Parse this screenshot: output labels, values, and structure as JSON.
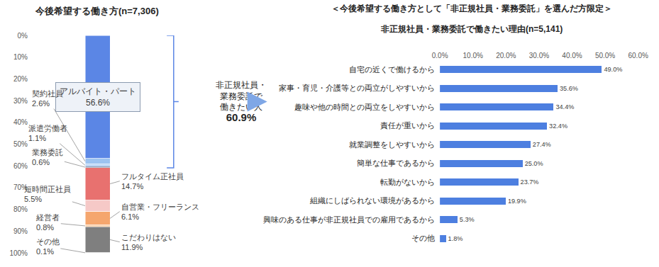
{
  "chart_data": [
    {
      "type": "bar",
      "stacked": true,
      "title": "今後希望する働き方(n=7,306)",
      "categories": [
        null
      ],
      "series": [
        {
          "name": "アルバイト・パート",
          "color": "#5B86E5",
          "values": [
            56.6
          ],
          "value_labels": [
            "56.6%"
          ]
        },
        {
          "name": "契約社員",
          "color": "#9DC3F0",
          "values": [
            2.6
          ],
          "value_labels": [
            "2.6%"
          ]
        },
        {
          "name": "派遣労働者",
          "color": "#BDD7F5",
          "values": [
            1.1
          ],
          "value_labels": [
            "1.1%"
          ]
        },
        {
          "name": "業務委託",
          "color": "#1F3864",
          "values": [
            0.6
          ],
          "value_labels": [
            "0.6%"
          ]
        },
        {
          "name": "フルタイム正社員",
          "color": "#E8716F",
          "values": [
            14.7
          ],
          "value_labels": [
            "14.7%"
          ]
        },
        {
          "name": "短時間正社員",
          "color": "#F6C9C7",
          "values": [
            5.5
          ],
          "value_labels": [
            "5.5%"
          ]
        },
        {
          "name": "自営業・フリーランス",
          "color": "#F5A66E",
          "values": [
            6.1
          ],
          "value_labels": [
            "6.1%"
          ]
        },
        {
          "name": "経営者",
          "color": "#FAD3AE",
          "values": [
            0.8
          ],
          "value_labels": [
            "0.8%"
          ]
        },
        {
          "name": "こだわりはない",
          "color": "#7F7F7F",
          "values": [
            11.9
          ],
          "value_labels": [
            "11.9%"
          ]
        },
        {
          "name": "その他",
          "color": "#C9C9C9",
          "values": [
            0.1
          ],
          "value_labels": [
            "0.1%"
          ]
        }
      ],
      "ylim": [
        0,
        100
      ],
      "yticks": [
        {
          "value": 0,
          "label": "0%"
        },
        {
          "value": 10,
          "label": "10%"
        },
        {
          "value": 20,
          "label": "20%"
        },
        {
          "value": 30,
          "label": "30%"
        },
        {
          "value": 40,
          "label": "40%"
        },
        {
          "value": 50,
          "label": "50%"
        },
        {
          "value": 60,
          "label": "60%"
        },
        {
          "value": 70,
          "label": "70%"
        },
        {
          "value": 80,
          "label": "80%"
        },
        {
          "value": 90,
          "label": "90%"
        },
        {
          "value": 100,
          "label": "100%"
        }
      ],
      "grid": false,
      "data_labels": true,
      "tick_labels": "y",
      "annotations": [
        {
          "text": [
            "非正規社員・",
            "業務委託で",
            "働きたい人"
          ],
          "value": 60.9,
          "value_label": "60.9%"
        }
      ]
    },
    {
      "type": "bar",
      "orientation": "horizontal",
      "subtitle": "＜今後希望する働き方として「非正規社員・業務委託」を選んだ方限定＞",
      "title": "非正規社員・業務委託で働きたい理由(n=5,141)",
      "categories": [
        "自宅の近くで働けるから",
        "家事・育児・介護等との両立がしやすいから",
        "趣味や他の時間との両立をしやすいから",
        "責任が重いから",
        "就業調整をしやすいから",
        "簡単な仕事であるから",
        "転勤がないから",
        "組織にしばられない環境があるから",
        "興味のある仕事が非正規社員での雇用であるから",
        "その他"
      ],
      "values": [
        49.0,
        35.6,
        34.4,
        32.4,
        27.4,
        25.0,
        23.7,
        19.9,
        5.3,
        1.8
      ],
      "value_labels": [
        "49.0%",
        "35.6%",
        "34.4%",
        "32.4%",
        "27.4%",
        "25.0%",
        "23.7%",
        "19.9%",
        "5.3%",
        "1.8%"
      ],
      "color": "#4D7FE0",
      "xlim": [
        0,
        60
      ],
      "xticks": [
        {
          "value": 0,
          "label": "0.0%"
        },
        {
          "value": 10,
          "label": "10.0%"
        },
        {
          "value": 20,
          "label": "20.0%"
        },
        {
          "value": 30,
          "label": "30.0%"
        },
        {
          "value": 40,
          "label": "40.0%"
        },
        {
          "value": 50,
          "label": "50.0%"
        },
        {
          "value": 60,
          "label": "60.0%"
        }
      ],
      "grid": false,
      "data_labels": true
    }
  ]
}
